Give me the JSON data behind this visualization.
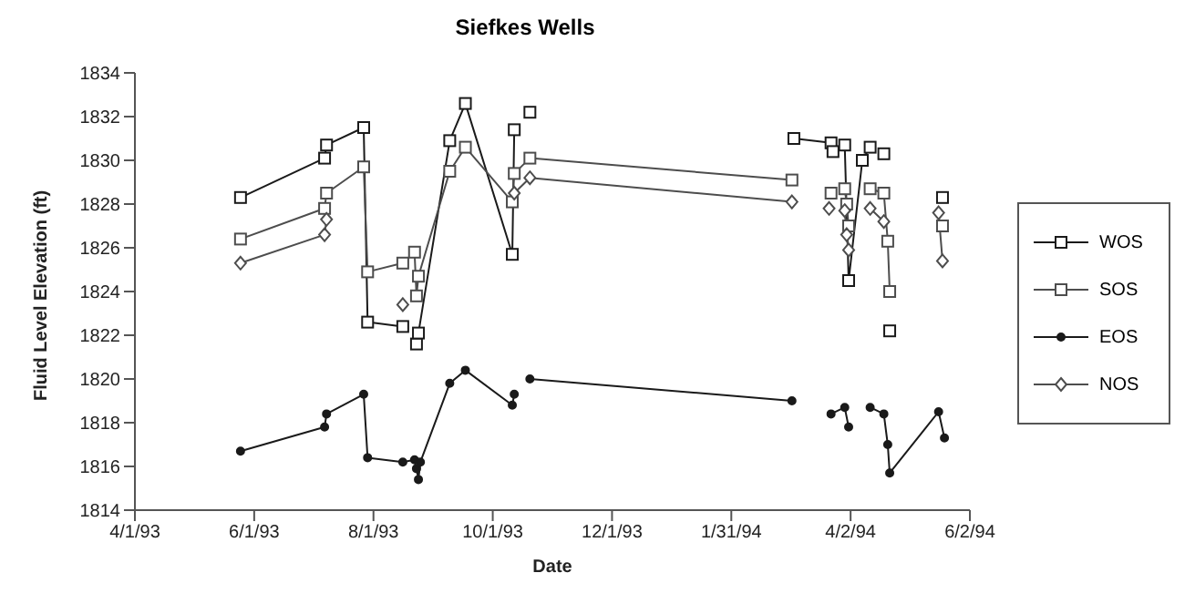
{
  "chart_data": {
    "type": "line",
    "title": "Siefkes Wells",
    "xlabel": "Date",
    "ylabel": "Fluid Level Elevation (ft)",
    "xlim": [
      "1993-04-01",
      "1994-06-02"
    ],
    "xticks": [
      {
        "value": "1993-04-01",
        "label": "4/1/93"
      },
      {
        "value": "1993-06-01",
        "label": "6/1/93"
      },
      {
        "value": "1993-08-01",
        "label": "8/1/93"
      },
      {
        "value": "1993-10-01",
        "label": "10/1/93"
      },
      {
        "value": "1993-12-01",
        "label": "12/1/93"
      },
      {
        "value": "1994-01-31",
        "label": "1/31/94"
      },
      {
        "value": "1994-04-02",
        "label": "4/2/94"
      },
      {
        "value": "1994-06-02",
        "label": "6/2/94"
      }
    ],
    "ylim": [
      1814,
      1834
    ],
    "yticks": [
      1814,
      1816,
      1818,
      1820,
      1822,
      1824,
      1826,
      1828,
      1830,
      1832,
      1834
    ],
    "legend": "right",
    "line_style": "solid",
    "series": [
      {
        "name": "WOS",
        "color": "#1a1a1a",
        "marker": "square",
        "x": [
          "1993-05-25",
          "1993-07-07",
          "1993-07-08",
          "1993-07-27",
          "1993-07-29",
          "1993-08-16",
          "1993-08-20",
          "1993-08-23",
          "1993-08-24",
          "1993-09-09",
          "1993-09-17",
          "1993-10-11",
          "1993-10-12",
          "1993-10-16",
          "1993-10-20",
          "1993-12-01",
          "1994-03-04",
          "1994-03-23",
          "1994-03-23T12:00",
          "1994-03-24",
          "1994-03-27",
          "1994-03-30",
          "1994-04-01",
          "1994-04-08",
          "1994-04-12",
          "1994-04-15",
          "1994-04-19",
          "1994-04-20",
          "1994-04-22",
          "1994-05-01",
          "1994-05-19"
        ],
        "values": [
          1828.3,
          1830.1,
          1830.7,
          1831.5,
          1822.6,
          1822.4,
          null,
          1821.6,
          1822.1,
          1830.9,
          1832.6,
          1825.7,
          1831.4,
          null,
          1832.2,
          null,
          1831.0,
          1830.8,
          null,
          1830.4,
          null,
          1830.7,
          1824.5,
          1830.0,
          1830.6,
          null,
          1830.3,
          null,
          1822.2,
          null,
          1828.3
        ]
      },
      {
        "name": "SOS",
        "color": "#4d4d4d",
        "marker": "square",
        "x": [
          "1993-05-25",
          "1993-07-07",
          "1993-07-08",
          "1993-07-27",
          "1993-07-29",
          "1993-08-16",
          "1993-08-22",
          "1993-08-23",
          "1993-08-24",
          "1993-09-09",
          "1993-09-17",
          "1993-10-11",
          "1993-10-12",
          "1993-10-20",
          "1994-03-03",
          "1994-03-20",
          "1994-03-23",
          "1994-03-27",
          "1994-03-30",
          "1994-03-31",
          "1994-04-01",
          "1994-04-08",
          "1994-04-12",
          "1994-04-19",
          "1994-04-21",
          "1994-04-22",
          "1994-05-01",
          "1994-05-19"
        ],
        "values": [
          1826.4,
          1827.8,
          1828.5,
          1829.7,
          1824.9,
          1825.3,
          1825.8,
          1823.8,
          1824.7,
          1829.5,
          1830.6,
          1828.1,
          1829.4,
          1830.1,
          1829.1,
          null,
          1828.5,
          null,
          1828.7,
          1828.0,
          1827.0,
          null,
          1828.7,
          1828.5,
          1826.3,
          1824.0,
          null,
          1827.0
        ]
      },
      {
        "name": "EOS",
        "color": "#1a1a1a",
        "marker": "circle",
        "x": [
          "1993-05-25",
          "1993-07-07",
          "1993-07-08",
          "1993-07-27",
          "1993-07-29",
          "1993-08-16",
          "1993-08-22",
          "1993-08-23",
          "1993-08-24",
          "1993-08-25",
          "1993-09-09",
          "1993-09-17",
          "1993-10-11",
          "1993-10-12",
          "1993-10-16",
          "1993-10-20",
          "1994-03-03",
          "1994-03-15",
          "1994-03-23",
          "1994-03-30",
          "1994-04-01",
          "1994-04-08",
          "1994-04-12",
          "1994-04-19",
          "1994-04-21",
          "1994-04-22",
          "1994-05-17",
          "1994-05-20"
        ],
        "values": [
          1816.7,
          1817.8,
          1818.4,
          1819.3,
          1816.4,
          1816.2,
          1816.3,
          1815.9,
          1815.4,
          1816.2,
          1819.8,
          1820.4,
          1818.8,
          1819.3,
          null,
          1820.0,
          1819.0,
          null,
          1818.4,
          1818.7,
          1817.8,
          null,
          1818.7,
          1818.4,
          1817.0,
          1815.7,
          1818.5,
          1817.3
        ]
      },
      {
        "name": "NOS",
        "color": "#4d4d4d",
        "marker": "diamond",
        "x": [
          "1993-05-25",
          "1993-07-07",
          "1993-07-08",
          "1993-07-20",
          "1993-08-16",
          "1993-09-01",
          "1993-10-12",
          "1993-10-20",
          "1994-03-03",
          "1994-03-15",
          "1994-03-22",
          "1994-03-26",
          "1994-03-30",
          "1994-03-31",
          "1994-04-01",
          "1994-04-08",
          "1994-04-12",
          "1994-04-19",
          "1994-05-01",
          "1994-05-17",
          "1994-05-19"
        ],
        "values": [
          1825.3,
          1826.6,
          1827.3,
          null,
          1823.4,
          null,
          1828.5,
          1829.2,
          1828.1,
          null,
          1827.8,
          null,
          1827.7,
          1826.6,
          1825.9,
          null,
          1827.8,
          1827.2,
          null,
          1827.6,
          1825.4
        ]
      }
    ]
  }
}
